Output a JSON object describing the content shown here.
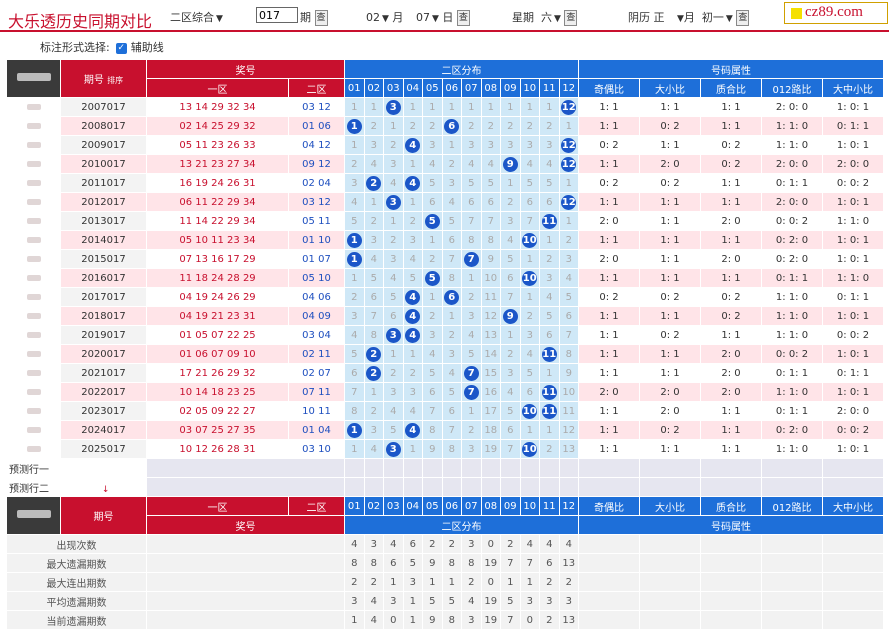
{
  "header": {
    "title": "大乐透历史同期对比",
    "mode_select": "二区综合",
    "issue_value": "017",
    "issue_suffix": "期",
    "query_btn": "查",
    "month_value": "02",
    "month_suffix": "月",
    "day_value": "07",
    "day_suffix": "日",
    "weekday_label": "星期",
    "weekday_value": "六",
    "lunar_label": "阴历",
    "lunar_month": "正",
    "lunar_month_suffix": "月",
    "lunar_day": "初一",
    "logo_text": "cz89.com"
  },
  "options": {
    "label": "标注形式选择:",
    "checkbox_label": "辅助线"
  },
  "table": {
    "hdr_issue": "期号",
    "hdr_sort": "排序",
    "hdr_prize": "奖号",
    "hdr_zone1": "一区",
    "hdr_zone2": "二区",
    "hdr_dist": "二区分布",
    "hdr_attr": "号码属性",
    "dist_nums": [
      "01",
      "02",
      "03",
      "04",
      "05",
      "06",
      "07",
      "08",
      "09",
      "10",
      "11",
      "12"
    ],
    "attr_cols": [
      "奇偶比",
      "大小比",
      "质合比",
      "012路比",
      "大中小比"
    ],
    "rows": [
      {
        "issue": "2007017",
        "z1": "13 14 29 32 34",
        "z2": "03 12",
        "dist": [
          "1",
          "1",
          "3",
          "1",
          "1",
          "1",
          "1",
          "1",
          "1",
          "1",
          "1",
          "12"
        ],
        "attr": [
          "1: 1",
          "1: 1",
          "1: 1",
          "2: 0: 0",
          "1: 0: 1"
        ]
      },
      {
        "issue": "2008017",
        "z1": "02 14 25 29 32",
        "z2": "01 06",
        "dist": [
          "1",
          "2",
          "1",
          "2",
          "2",
          "6",
          "2",
          "2",
          "2",
          "2",
          "2",
          "1"
        ],
        "attr": [
          "1: 1",
          "0: 2",
          "1: 1",
          "1: 1: 0",
          "0: 1: 1"
        ]
      },
      {
        "issue": "2009017",
        "z1": "05 11 23 26 33",
        "z2": "04 12",
        "dist": [
          "1",
          "3",
          "2",
          "4",
          "3",
          "1",
          "3",
          "3",
          "3",
          "3",
          "3",
          "12"
        ],
        "attr": [
          "0: 2",
          "1: 1",
          "0: 2",
          "1: 1: 0",
          "1: 0: 1"
        ]
      },
      {
        "issue": "2010017",
        "z1": "13 21 23 27 34",
        "z2": "09 12",
        "dist": [
          "2",
          "4",
          "3",
          "1",
          "4",
          "2",
          "4",
          "4",
          "9",
          "4",
          "4",
          "12"
        ],
        "attr": [
          "1: 1",
          "2: 0",
          "0: 2",
          "2: 0: 0",
          "2: 0: 0"
        ]
      },
      {
        "issue": "2011017",
        "z1": "16 19 24 26 31",
        "z2": "02 04",
        "dist": [
          "3",
          "2",
          "4",
          "4",
          "5",
          "3",
          "5",
          "5",
          "1",
          "5",
          "5",
          "1"
        ],
        "attr": [
          "0: 2",
          "0: 2",
          "1: 1",
          "0: 1: 1",
          "0: 0: 2"
        ]
      },
      {
        "issue": "2012017",
        "z1": "06 11 22 29 34",
        "z2": "03 12",
        "dist": [
          "4",
          "1",
          "3",
          "1",
          "6",
          "4",
          "6",
          "6",
          "2",
          "6",
          "6",
          "12"
        ],
        "attr": [
          "1: 1",
          "1: 1",
          "1: 1",
          "2: 0: 0",
          "1: 0: 1"
        ]
      },
      {
        "issue": "2013017",
        "z1": "11 14 22 29 34",
        "z2": "05 11",
        "dist": [
          "5",
          "2",
          "1",
          "2",
          "5",
          "5",
          "7",
          "7",
          "3",
          "7",
          "11",
          "1"
        ],
        "attr": [
          "2: 0",
          "1: 1",
          "2: 0",
          "0: 0: 2",
          "1: 1: 0"
        ]
      },
      {
        "issue": "2014017",
        "z1": "05 10 11 23 34",
        "z2": "01 10",
        "dist": [
          "1",
          "3",
          "2",
          "3",
          "1",
          "6",
          "8",
          "8",
          "4",
          "10",
          "1",
          "2"
        ],
        "attr": [
          "1: 1",
          "1: 1",
          "1: 1",
          "0: 2: 0",
          "1: 0: 1"
        ]
      },
      {
        "issue": "2015017",
        "z1": "07 13 16 17 29",
        "z2": "01 07",
        "dist": [
          "1",
          "4",
          "3",
          "4",
          "2",
          "7",
          "7",
          "9",
          "5",
          "1",
          "2",
          "3"
        ],
        "attr": [
          "2: 0",
          "1: 1",
          "2: 0",
          "0: 2: 0",
          "1: 0: 1"
        ]
      },
      {
        "issue": "2016017",
        "z1": "11 18 24 28 29",
        "z2": "05 10",
        "dist": [
          "1",
          "5",
          "4",
          "5",
          "5",
          "8",
          "1",
          "10",
          "6",
          "10",
          "3",
          "4"
        ],
        "attr": [
          "1: 1",
          "1: 1",
          "1: 1",
          "0: 1: 1",
          "1: 1: 0"
        ]
      },
      {
        "issue": "2017017",
        "z1": "04 19 24 26 29",
        "z2": "04 06",
        "dist": [
          "2",
          "6",
          "5",
          "4",
          "1",
          "6",
          "2",
          "11",
          "7",
          "1",
          "4",
          "5"
        ],
        "attr": [
          "0: 2",
          "0: 2",
          "0: 2",
          "1: 1: 0",
          "0: 1: 1"
        ]
      },
      {
        "issue": "2018017",
        "z1": "04 19 21 23 31",
        "z2": "04 09",
        "dist": [
          "3",
          "7",
          "6",
          "4",
          "2",
          "1",
          "3",
          "12",
          "9",
          "2",
          "5",
          "6"
        ],
        "attr": [
          "1: 1",
          "1: 1",
          "0: 2",
          "1: 1: 0",
          "1: 0: 1"
        ]
      },
      {
        "issue": "2019017",
        "z1": "01 05 07 22 25",
        "z2": "03 04",
        "dist": [
          "4",
          "8",
          "3",
          "4",
          "3",
          "2",
          "4",
          "13",
          "1",
          "3",
          "6",
          "7"
        ],
        "attr": [
          "1: 1",
          "0: 2",
          "1: 1",
          "1: 1: 0",
          "0: 0: 2"
        ]
      },
      {
        "issue": "2020017",
        "z1": "01 06 07 09 10",
        "z2": "02 11",
        "dist": [
          "5",
          "2",
          "1",
          "1",
          "4",
          "3",
          "5",
          "14",
          "2",
          "4",
          "11",
          "8"
        ],
        "attr": [
          "1: 1",
          "1: 1",
          "2: 0",
          "0: 0: 2",
          "1: 0: 1"
        ]
      },
      {
        "issue": "2021017",
        "z1": "17 21 26 29 32",
        "z2": "02 07",
        "dist": [
          "6",
          "2",
          "2",
          "2",
          "5",
          "4",
          "7",
          "15",
          "3",
          "5",
          "1",
          "9"
        ],
        "attr": [
          "1: 1",
          "1: 1",
          "2: 0",
          "0: 1: 1",
          "0: 1: 1"
        ]
      },
      {
        "issue": "2022017",
        "z1": "10 14 18 23 25",
        "z2": "07 11",
        "dist": [
          "7",
          "1",
          "3",
          "3",
          "6",
          "5",
          "7",
          "16",
          "4",
          "6",
          "11",
          "10"
        ],
        "attr": [
          "2: 0",
          "2: 0",
          "2: 0",
          "1: 1: 0",
          "1: 0: 1"
        ]
      },
      {
        "issue": "2023017",
        "z1": "02 05 09 22 27",
        "z2": "10 11",
        "dist": [
          "8",
          "2",
          "4",
          "4",
          "7",
          "6",
          "1",
          "17",
          "5",
          "10",
          "11",
          "11"
        ],
        "attr": [
          "1: 1",
          "2: 0",
          "1: 1",
          "0: 1: 1",
          "2: 0: 0"
        ]
      },
      {
        "issue": "2024017",
        "z1": "03 07 25 27 35",
        "z2": "01 04",
        "dist": [
          "1",
          "3",
          "5",
          "4",
          "8",
          "7",
          "2",
          "18",
          "6",
          "1",
          "1",
          "12"
        ],
        "attr": [
          "1: 1",
          "0: 2",
          "1: 1",
          "0: 2: 0",
          "0: 0: 2"
        ]
      },
      {
        "issue": "2025017",
        "z1": "10 12 26 28 31",
        "z2": "03 10",
        "dist": [
          "1",
          "4",
          "3",
          "1",
          "9",
          "8",
          "3",
          "19",
          "7",
          "10",
          "2",
          "13"
        ],
        "attr": [
          "1: 1",
          "1: 1",
          "1: 1",
          "1: 1: 0",
          "1: 0: 1"
        ]
      }
    ],
    "hits": [
      [
        3,
        12
      ],
      [
        1,
        6
      ],
      [
        4,
        12
      ],
      [
        9,
        12
      ],
      [
        2,
        4
      ],
      [
        3,
        12
      ],
      [
        5,
        11
      ],
      [
        1,
        10
      ],
      [
        1,
        7
      ],
      [
        5,
        10
      ],
      [
        4,
        6
      ],
      [
        4,
        9
      ],
      [
        3,
        4
      ],
      [
        2,
        11
      ],
      [
        2,
        7
      ],
      [
        7,
        11
      ],
      [
        10,
        11
      ],
      [
        1,
        4
      ],
      [
        3,
        10
      ]
    ],
    "pred1": "预测行一",
    "pred2": "预测行二",
    "stats": [
      {
        "label": "出现次数",
        "vals": [
          "4",
          "3",
          "4",
          "6",
          "2",
          "2",
          "3",
          "0",
          "2",
          "4",
          "4",
          "4"
        ]
      },
      {
        "label": "最大遗漏期数",
        "vals": [
          "8",
          "8",
          "6",
          "5",
          "9",
          "8",
          "8",
          "19",
          "7",
          "7",
          "6",
          "13"
        ]
      },
      {
        "label": "最大连出期数",
        "vals": [
          "2",
          "2",
          "1",
          "3",
          "1",
          "1",
          "2",
          "0",
          "1",
          "1",
          "2",
          "2"
        ]
      },
      {
        "label": "平均遗漏期数",
        "vals": [
          "3",
          "4",
          "3",
          "1",
          "5",
          "5",
          "4",
          "19",
          "5",
          "3",
          "3",
          "3"
        ]
      },
      {
        "label": "当前遗漏期数",
        "vals": [
          "1",
          "4",
          "0",
          "1",
          "9",
          "8",
          "3",
          "19",
          "7",
          "0",
          "2",
          "13"
        ]
      }
    ]
  }
}
